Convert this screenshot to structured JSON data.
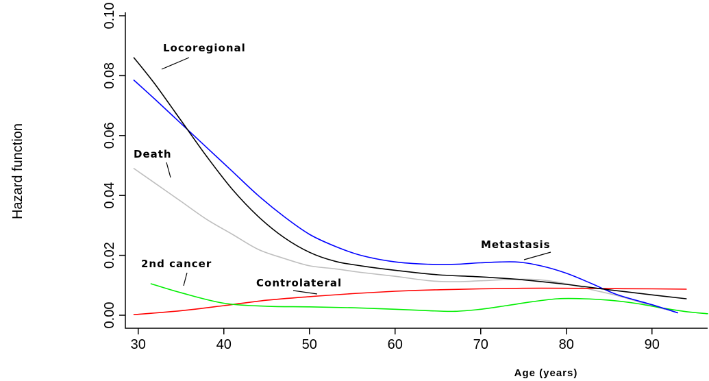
{
  "chart_data": {
    "type": "line",
    "title": "",
    "xlabel": "Age (years)",
    "ylabel": "Hazard function",
    "xlim": [
      28.5,
      96.5
    ],
    "ylim": [
      0.0,
      0.1
    ],
    "xticks": [
      30,
      40,
      50,
      60,
      70,
      80,
      90
    ],
    "yticks": [
      0.0,
      0.02,
      0.04,
      0.06,
      0.08,
      0.1
    ],
    "xtick_labels": [
      "30",
      "40",
      "50",
      "60",
      "70",
      "80",
      "90"
    ],
    "ytick_labels": [
      "0.00",
      "0.02",
      "0.04",
      "0.06",
      "0.08",
      "0.10"
    ],
    "grid": false,
    "legend": "none",
    "series": [
      {
        "name": "Locoregional",
        "color": "#000000",
        "x": [
          29.5,
          32,
          35,
          38,
          41,
          44,
          47,
          50,
          53,
          56,
          60,
          65,
          70,
          75,
          80,
          85,
          90,
          94
        ],
        "y": [
          0.086,
          0.077,
          0.065,
          0.053,
          0.042,
          0.033,
          0.026,
          0.021,
          0.018,
          0.0165,
          0.015,
          0.0135,
          0.0128,
          0.0118,
          0.0103,
          0.0085,
          0.0068,
          0.0055
        ]
      },
      {
        "name": "Metastasis",
        "color": "#0000ff",
        "x": [
          29.5,
          32,
          35,
          38,
          41,
          44,
          47,
          50,
          53,
          56,
          60,
          64,
          67,
          70,
          74,
          77,
          80,
          83,
          86,
          90,
          93
        ],
        "y": [
          0.0785,
          0.072,
          0.064,
          0.056,
          0.048,
          0.04,
          0.033,
          0.027,
          0.023,
          0.02,
          0.0178,
          0.017,
          0.017,
          0.0175,
          0.0178,
          0.0165,
          0.014,
          0.0105,
          0.0068,
          0.0035,
          0.0008
        ]
      },
      {
        "name": "Death",
        "color": "#bebebe",
        "x": [
          29.5,
          32,
          35,
          38,
          41,
          44,
          47,
          50,
          53,
          56,
          60,
          64,
          67,
          70,
          74,
          77,
          80,
          83,
          86,
          89,
          91.5
        ],
        "y": [
          0.049,
          0.044,
          0.038,
          0.032,
          0.027,
          0.022,
          0.019,
          0.0165,
          0.0155,
          0.0143,
          0.013,
          0.0115,
          0.0112,
          0.0115,
          0.012,
          0.0118,
          0.0105,
          0.0085,
          0.0065,
          0.004,
          0.002
        ]
      },
      {
        "name": "2nd cancer",
        "color": "#00ee00",
        "x": [
          31.5,
          35,
          40,
          45,
          50,
          55,
          60,
          64,
          67,
          70,
          73,
          76,
          79,
          82,
          85,
          88,
          91,
          94,
          96.5
        ],
        "y": [
          0.0105,
          0.0075,
          0.004,
          0.003,
          0.0028,
          0.0025,
          0.002,
          0.0015,
          0.0013,
          0.002,
          0.0032,
          0.0045,
          0.0055,
          0.0055,
          0.005,
          0.004,
          0.0025,
          0.0012,
          0.0005
        ]
      },
      {
        "name": "Controlateral",
        "color": "#ff0000",
        "x": [
          29.5,
          35,
          40,
          45,
          50,
          55,
          60,
          65,
          70,
          75,
          80,
          85,
          90,
          94
        ],
        "y": [
          0.0002,
          0.0015,
          0.0032,
          0.005,
          0.0062,
          0.0072,
          0.008,
          0.0085,
          0.0088,
          0.009,
          0.009,
          0.0089,
          0.0088,
          0.0087
        ]
      }
    ],
    "annotations": [
      {
        "text": "Locoregional",
        "series": "Locoregional"
      },
      {
        "text": "Death",
        "series": "Death"
      },
      {
        "text": "Metastasis",
        "series": "Metastasis"
      },
      {
        "text": "2nd cancer",
        "series": "2nd cancer"
      },
      {
        "text": "Controlateral",
        "series": "Controlateral"
      }
    ]
  }
}
